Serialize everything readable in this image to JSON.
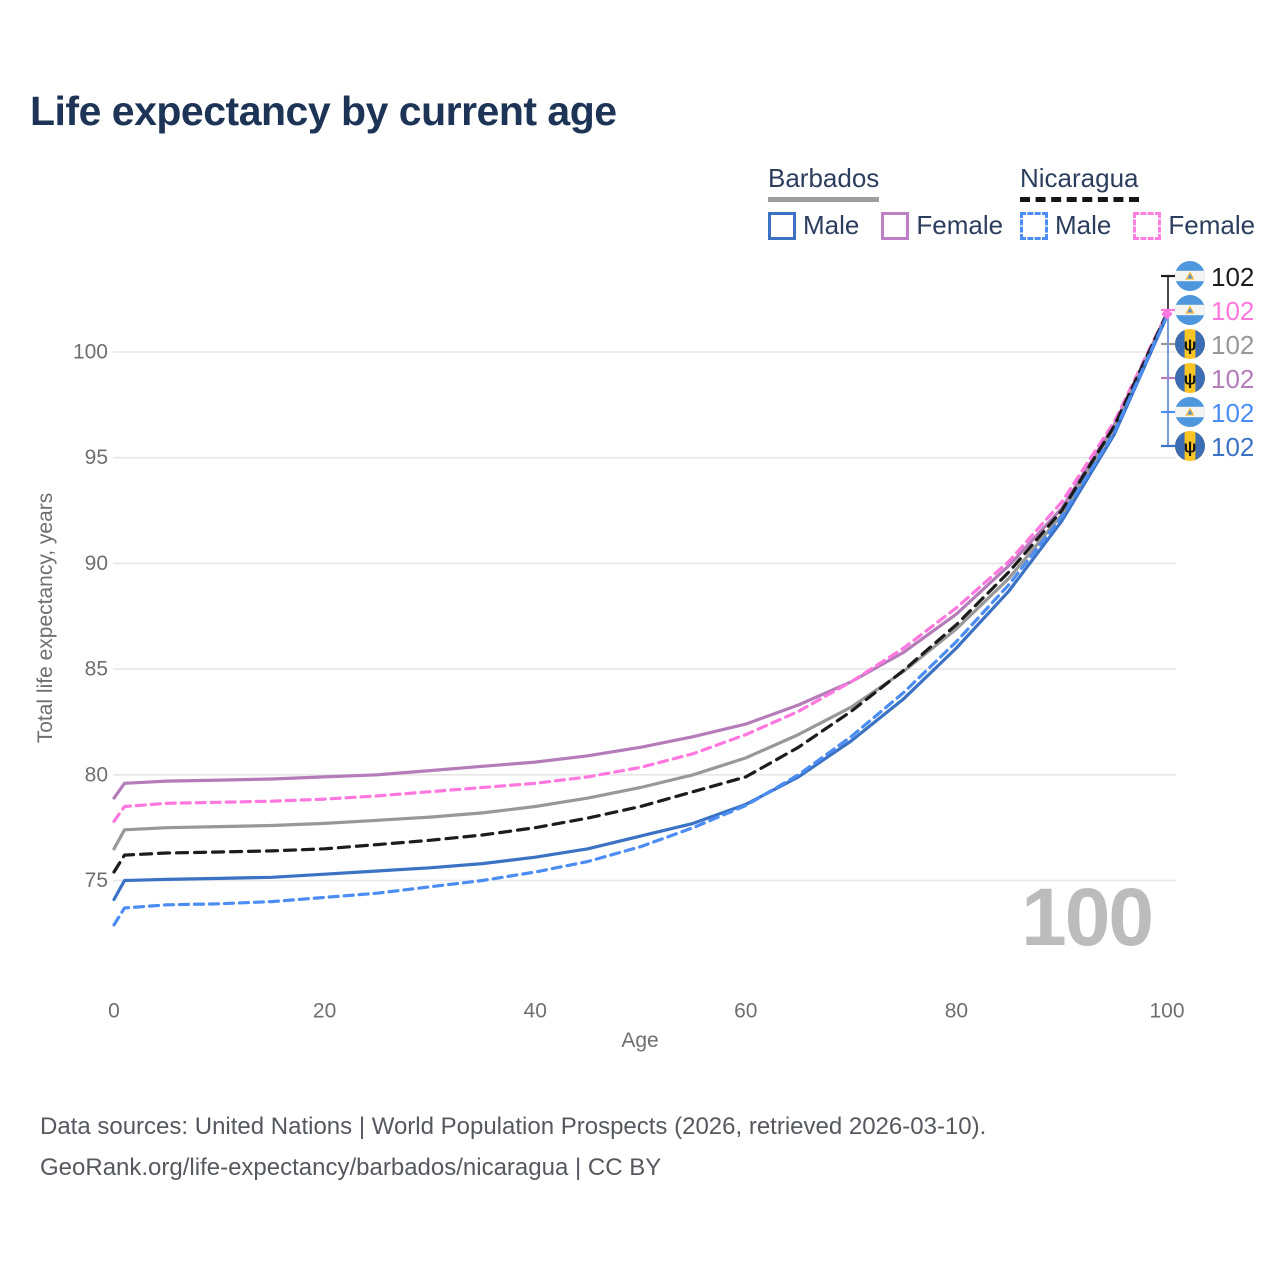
{
  "title": "Life expectancy by current age",
  "legend": {
    "groups": [
      {
        "heading": "Barbados",
        "underline_style": "solid",
        "underline_color": "#9e9e9e",
        "items": [
          {
            "label": "Male",
            "color": "#3b72c4",
            "dash": false
          },
          {
            "label": "Female",
            "color": "#bd80c4",
            "dash": false
          }
        ]
      },
      {
        "heading": "Nicaragua",
        "underline_style": "dashed",
        "underline_color": "#161616",
        "items": [
          {
            "label": "Male",
            "color": "#4b8df2",
            "dash": true
          },
          {
            "label": "Female",
            "color": "#ff80e0",
            "dash": true
          }
        ]
      }
    ]
  },
  "chart_data": {
    "type": "line",
    "title": "Life expectancy by current age",
    "xlabel": "Age",
    "ylabel": "Total life expectancy, years",
    "x_ticks": [
      0,
      20,
      40,
      60,
      80,
      100
    ],
    "y_ticks": [
      75,
      80,
      85,
      90,
      95,
      100
    ],
    "xlim": [
      0,
      100
    ],
    "ylim": [
      72.5,
      102.5
    ],
    "grid": "horizontal",
    "legend_position": "top-right",
    "watermark": "100",
    "x": [
      0,
      1,
      5,
      10,
      15,
      20,
      25,
      30,
      35,
      40,
      45,
      50,
      55,
      60,
      65,
      70,
      75,
      80,
      85,
      90,
      95,
      100
    ],
    "series": [
      {
        "name": "Barbados Female",
        "country": "Barbados",
        "sex": "Female",
        "color": "#b57cba",
        "dash": false,
        "values": [
          78.9,
          79.6,
          79.7,
          79.75,
          79.8,
          79.9,
          80.0,
          80.2,
          80.4,
          80.6,
          80.9,
          81.3,
          81.8,
          82.4,
          83.3,
          84.4,
          85.8,
          87.6,
          89.9,
          92.6,
          96.55,
          101.8
        ]
      },
      {
        "name": "Nicaragua Female",
        "country": "Nicaragua",
        "sex": "Female",
        "color": "#ff78df",
        "dash": true,
        "values": [
          77.8,
          78.5,
          78.65,
          78.7,
          78.75,
          78.85,
          79.0,
          79.2,
          79.4,
          79.6,
          79.9,
          80.35,
          81.0,
          81.9,
          83.0,
          84.4,
          86.0,
          87.9,
          90.1,
          92.9,
          96.7,
          101.85
        ]
      },
      {
        "name": "Barbados",
        "country": "Barbados",
        "sex": "Both",
        "color": "#989898",
        "dash": false,
        "values": [
          76.5,
          77.4,
          77.5,
          77.55,
          77.6,
          77.7,
          77.85,
          78.0,
          78.2,
          78.5,
          78.9,
          79.4,
          80.0,
          80.8,
          81.9,
          83.2,
          84.9,
          86.9,
          89.3,
          92.3,
          96.4,
          101.78
        ]
      },
      {
        "name": "Nicaragua",
        "country": "Nicaragua",
        "sex": "Both",
        "color": "#1c1c1c",
        "dash": true,
        "values": [
          75.4,
          76.2,
          76.3,
          76.35,
          76.4,
          76.5,
          76.7,
          76.9,
          77.15,
          77.5,
          77.95,
          78.5,
          79.2,
          79.9,
          81.3,
          83.0,
          84.95,
          87.1,
          89.6,
          92.5,
          96.5,
          101.82
        ]
      },
      {
        "name": "Barbados Male",
        "country": "Barbados",
        "sex": "Male",
        "color": "#3b72c4",
        "dash": false,
        "values": [
          74.1,
          75.0,
          75.05,
          75.1,
          75.15,
          75.3,
          75.45,
          75.6,
          75.8,
          76.1,
          76.5,
          77.1,
          77.7,
          78.6,
          79.9,
          81.6,
          83.6,
          86.0,
          88.7,
          92.0,
          96.1,
          101.7
        ]
      },
      {
        "name": "Nicaragua Male",
        "country": "Nicaragua",
        "sex": "Male",
        "color": "#4b8df2",
        "dash": true,
        "values": [
          72.9,
          73.7,
          73.85,
          73.9,
          74.0,
          74.2,
          74.4,
          74.7,
          75.0,
          75.4,
          75.9,
          76.6,
          77.5,
          78.55,
          80.0,
          81.8,
          83.9,
          86.3,
          89.0,
          92.2,
          96.2,
          101.73
        ]
      }
    ],
    "end_labels": [
      {
        "country": "Nicaragua",
        "series": "Nicaragua",
        "value": "102",
        "color": "#1c1c1c"
      },
      {
        "country": "Nicaragua",
        "series": "Nicaragua Female",
        "value": "102",
        "color": "#ff78df"
      },
      {
        "country": "Barbados",
        "series": "Barbados",
        "value": "102",
        "color": "#989898"
      },
      {
        "country": "Barbados",
        "series": "Barbados Female",
        "value": "102",
        "color": "#b57cba"
      },
      {
        "country": "Nicaragua",
        "series": "Nicaragua Male",
        "value": "102",
        "color": "#4b8df2"
      },
      {
        "country": "Barbados",
        "series": "Barbados Male",
        "value": "102",
        "color": "#3b72c4"
      }
    ]
  },
  "footer": {
    "line1": "Data sources: United Nations | World Population Prospects (2026, retrieved 2026-03-10).",
    "line2": "GeoRank.org/life-expectancy/barbados/nicaragua | CC BY"
  }
}
